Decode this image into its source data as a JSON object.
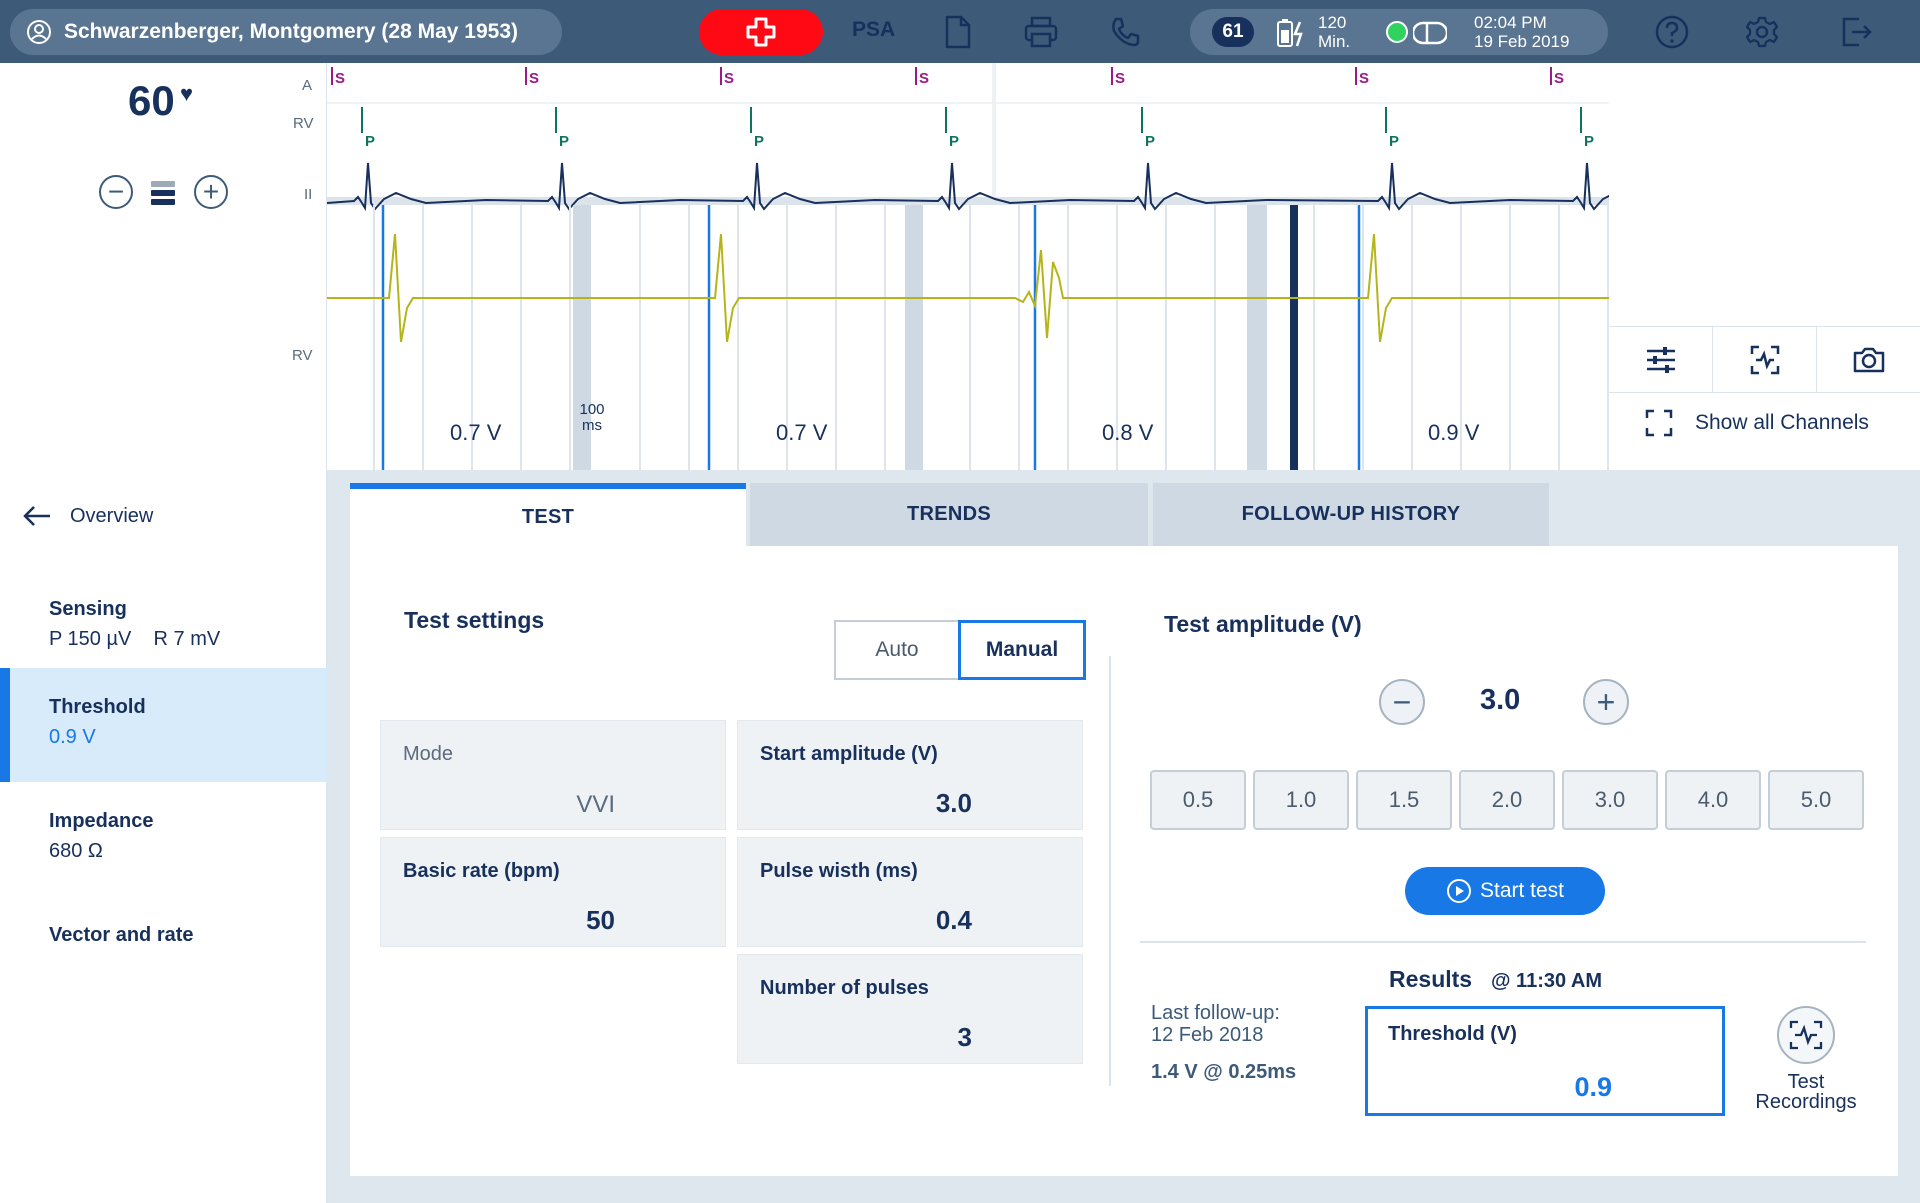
{
  "topbar": {
    "patient": "Schwarzenberger, Montgomery (28 May 1953)",
    "psa": "PSA",
    "heart_rate_badge": "61",
    "battery_line1": "120",
    "battery_line2": "Min.",
    "time": "02:04 PM",
    "date": "19 Feb 2019",
    "icons": [
      "user-icon",
      "emergency-icon",
      "document-icon",
      "print-icon",
      "phone-icon",
      "battery-icon",
      "device-icon",
      "help-icon",
      "settings-icon",
      "logout-icon"
    ]
  },
  "ecg": {
    "heart_rate": "60",
    "channels": [
      "A",
      "RV",
      "II",
      "RV"
    ],
    "marker_s": "S",
    "marker_p": "P",
    "scale_value": "100",
    "scale_unit": "ms",
    "amplitudes": [
      "0.7 V",
      "0.7 V",
      "0.8 V",
      "0.9 V"
    ],
    "colors": {
      "ecg_trace": "#17305c",
      "egm_trace": "#b5b51b",
      "pace_marker": "#1778e6",
      "s_marker": "#9b1a8a",
      "p_marker": "#0f7360"
    }
  },
  "right_panel": {
    "show_all_channels": "Show all Channels",
    "tools": [
      "sliders-icon",
      "channel-adjust-icon",
      "camera-icon"
    ]
  },
  "sidebar": {
    "back": "Overview",
    "items": [
      {
        "title": "Sensing",
        "sub": "P 150 µV    R 7 mV"
      },
      {
        "title": "Threshold",
        "sub": "0.9 V"
      },
      {
        "title": "Impedance",
        "sub": "680 Ω"
      },
      {
        "title": "Vector and rate",
        "sub": ""
      }
    ]
  },
  "tabs": [
    "TEST",
    "TRENDS",
    "FOLLOW-UP HISTORY"
  ],
  "test_settings": {
    "title": "Test settings",
    "mode_auto": "Auto",
    "mode_manual": "Manual",
    "fields": {
      "mode": {
        "label": "Mode",
        "value": "VVI"
      },
      "start_amplitude": {
        "label": "Start amplitude (V)",
        "value": "3.0"
      },
      "basic_rate": {
        "label": "Basic rate (bpm)",
        "value": "50"
      },
      "pulse_width": {
        "label": "Pulse wisth (ms)",
        "value": "0.4"
      },
      "num_pulses": {
        "label": "Number of pulses",
        "value": "3"
      }
    }
  },
  "test_amplitude": {
    "title": "Test amplitude (V)",
    "value": "3.0",
    "presets": [
      "0.5",
      "1.0",
      "1.5",
      "2.0",
      "3.0",
      "4.0",
      "5.0"
    ],
    "start_test": "Start test"
  },
  "results": {
    "title": "Results",
    "time": "@ 11:30 AM",
    "last_followup_label": "Last follow-up:",
    "last_followup_date": "12 Feb 2018",
    "last_followup_value": "1.4 V @ 0.25ms",
    "threshold_label": "Threshold (V)",
    "threshold_value": "0.9",
    "test_recordings_1": "Test",
    "test_recordings_2": "Recordings"
  }
}
